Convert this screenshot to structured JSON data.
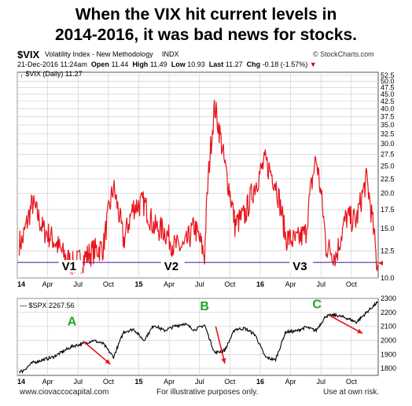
{
  "headline": {
    "line1": "When the VIX hit current levels in",
    "line2": "2014-2016, it was bad news for stocks."
  },
  "header": {
    "symbol": "$VIX",
    "name": "Volatility Index - New Methodology",
    "exchange": "INDX",
    "brand": "© StockCharts.com",
    "date": "21-Dec-2016 11:24am",
    "open_label": "Open",
    "open": "11.44",
    "high_label": "High",
    "high": "11.49",
    "low_label": "Low",
    "low": "10.93",
    "last_label": "Last",
    "last": "11.27",
    "chg_label": "Chg",
    "chg": "-0.18 (-1.57%)",
    "vix_legend": "$VIX (Daily) 11.27",
    "spx_legend": "$SPX 2267.56"
  },
  "footer": {
    "left": "www.ciovaccocapital.com",
    "center": "For illustrative purposes only.",
    "right": "Use at own risk."
  },
  "colors": {
    "vix_line": "#e8141b",
    "spx_line": "#000000",
    "support_line": "#5a2aa8",
    "arrow": "#e8141b",
    "peak_label": "#1ea51e",
    "grid": "#c8c8c8"
  },
  "chart_data": [
    {
      "type": "line",
      "title": "$VIX (Daily) 11.27",
      "series": [
        {
          "name": "$VIX (Daily)",
          "x": [
            "2014-01",
            "2014-02",
            "2014-03",
            "2014-04",
            "2014-05",
            "2014-06",
            "2014-07",
            "2014-08",
            "2014-09",
            "2014-10",
            "2014-11",
            "2014-12",
            "2015-01",
            "2015-02",
            "2015-03",
            "2015-04",
            "2015-05",
            "2015-06",
            "2015-07",
            "2015-08",
            "2015-09",
            "2015-10",
            "2015-11",
            "2015-12",
            "2016-01",
            "2016-02",
            "2016-03",
            "2016-04",
            "2016-05",
            "2016-06",
            "2016-07",
            "2016-08",
            "2016-09",
            "2016-10",
            "2016-11",
            "2016-12"
          ],
          "values": [
            13.5,
            18.5,
            15.0,
            13.8,
            12.2,
            11.2,
            11.7,
            12.5,
            12.9,
            21.0,
            13.5,
            18.0,
            18.5,
            15.2,
            14.8,
            13.0,
            12.8,
            15.3,
            12.0,
            40.7,
            25.0,
            15.5,
            16.8,
            21.5,
            26.0,
            22.0,
            14.0,
            13.5,
            14.5,
            26.7,
            13.0,
            12.0,
            16.5,
            16.0,
            22.5,
            11.3
          ]
        }
      ],
      "x_ticks": [
        "14",
        "Apr",
        "Jul",
        "Oct",
        "15",
        "Apr",
        "Jul",
        "Oct",
        "16",
        "Apr",
        "Jul",
        "Oct"
      ],
      "y_ticks": [
        10.0,
        12.5,
        15.0,
        17.5,
        20.0,
        22.5,
        25.0,
        27.5,
        30.0,
        32.5,
        35.0,
        37.5,
        40.0,
        42.5,
        45.0,
        47.5,
        50.0,
        52.5
      ],
      "y_scale": "log",
      "ylim": [
        10.0,
        52.5
      ],
      "annotations": [
        "V1",
        "V2",
        "V3"
      ],
      "support_level": 10.93,
      "grid": true,
      "legend": "top-left"
    },
    {
      "type": "line",
      "title": "$SPX 2267.56",
      "series": [
        {
          "name": "$SPX",
          "x": [
            "2014-01",
            "2014-02",
            "2014-03",
            "2014-04",
            "2014-05",
            "2014-06",
            "2014-07",
            "2014-08",
            "2014-09",
            "2014-10",
            "2014-11",
            "2014-12",
            "2015-01",
            "2015-02",
            "2015-03",
            "2015-04",
            "2015-05",
            "2015-06",
            "2015-07",
            "2015-08",
            "2015-09",
            "2015-10",
            "2015-11",
            "2015-12",
            "2016-01",
            "2016-02",
            "2016-03",
            "2016-04",
            "2016-05",
            "2016-06",
            "2016-07",
            "2016-08",
            "2016-09",
            "2016-10",
            "2016-11",
            "2016-12"
          ],
          "values": [
            1780,
            1840,
            1860,
            1880,
            1920,
            1960,
            1975,
            2000,
            1975,
            1880,
            2060,
            2080,
            2000,
            2110,
            2070,
            2100,
            2120,
            2075,
            2110,
            1910,
            1930,
            2080,
            2085,
            2040,
            1880,
            1860,
            2060,
            2065,
            2095,
            2070,
            2175,
            2180,
            2160,
            2130,
            2200,
            2267
          ]
        }
      ],
      "x_ticks": [
        "14",
        "Apr",
        "Jul",
        "Oct",
        "15",
        "Apr",
        "Jul",
        "Oct",
        "16",
        "Apr",
        "Jul",
        "Oct"
      ],
      "y_ticks": [
        1800,
        1900,
        2000,
        2100,
        2200,
        2300
      ],
      "ylim": [
        1750,
        2300
      ],
      "annotations": [
        "A",
        "B",
        "C"
      ],
      "grid": true,
      "legend": "top-left"
    }
  ]
}
